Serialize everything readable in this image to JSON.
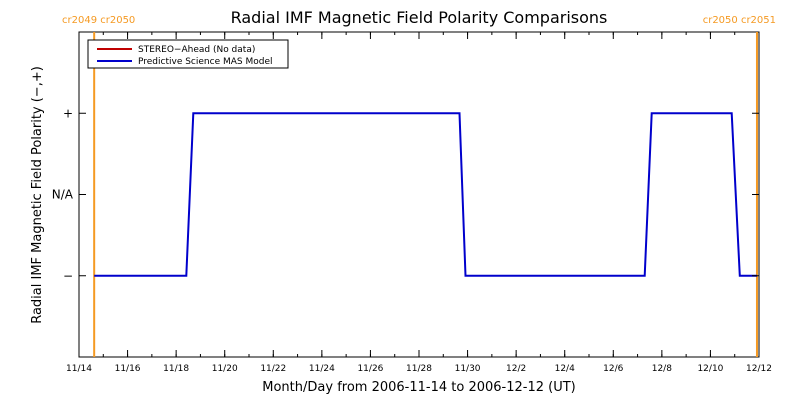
{
  "colors": {
    "frame": "#000000",
    "carrington": "#f59a23",
    "stereo": "#c00000",
    "model": "#0000cc"
  },
  "chart_data": {
    "type": "line",
    "title": "Radial IMF Magnetic Field Polarity Comparisons",
    "xlabel": "Month/Day from 2006-11-14 to 2006-12-12 (UT)",
    "ylabel": "Radial IMF Magnetic Field Polarity (−,+)",
    "xlim": [
      "2006-11-14",
      "2006-12-12"
    ],
    "ylim": [
      -2,
      2
    ],
    "x_ticks": [
      {
        "date": "2006-11-14",
        "label": "11/14"
      },
      {
        "date": "2006-11-16",
        "label": "11/16"
      },
      {
        "date": "2006-11-18",
        "label": "11/18"
      },
      {
        "date": "2006-11-20",
        "label": "11/20"
      },
      {
        "date": "2006-11-22",
        "label": "11/22"
      },
      {
        "date": "2006-11-24",
        "label": "11/24"
      },
      {
        "date": "2006-11-26",
        "label": "11/26"
      },
      {
        "date": "2006-11-28",
        "label": "11/28"
      },
      {
        "date": "2006-11-30",
        "label": "11/30"
      },
      {
        "date": "2006-12-02",
        "label": "12/2"
      },
      {
        "date": "2006-12-04",
        "label": "12/4"
      },
      {
        "date": "2006-12-06",
        "label": "12/6"
      },
      {
        "date": "2006-12-08",
        "label": "12/8"
      },
      {
        "date": "2006-12-10",
        "label": "12/10"
      },
      {
        "date": "2006-12-12",
        "label": "12/12"
      }
    ],
    "y_ticks": [
      {
        "value": 1,
        "label": "+"
      },
      {
        "value": 0,
        "label": "N/A"
      },
      {
        "value": -1,
        "label": "−"
      }
    ],
    "legend": {
      "position": "top-left",
      "entries": [
        {
          "label": "STEREO−Ahead (No data)",
          "color": "#c00000"
        },
        {
          "label": "Predictive Science MAS Model",
          "color": "#0000cc"
        }
      ]
    },
    "carrington_markers": [
      {
        "date": "2006-11-14 15:00",
        "label": "cr2049 cr2050",
        "side": "left"
      },
      {
        "date": "2006-12-11 22:00",
        "label": "cr2050 cr2051",
        "side": "right"
      }
    ],
    "series": [
      {
        "name": "Predictive Science MAS Model",
        "color": "#0000cc",
        "points": [
          [
            "2006-11-14 15:00",
            -1
          ],
          [
            "2006-11-18 10:00",
            -1
          ],
          [
            "2006-11-18 17:00",
            1
          ],
          [
            "2006-11-29 16:00",
            1
          ],
          [
            "2006-11-29 22:00",
            -1
          ],
          [
            "2006-12-07 07:00",
            -1
          ],
          [
            "2006-12-07 14:00",
            1
          ],
          [
            "2006-12-10 21:00",
            1
          ],
          [
            "2006-12-11 05:00",
            -1
          ],
          [
            "2006-12-11 22:00",
            -1
          ]
        ]
      },
      {
        "name": "STEREO−Ahead (No data)",
        "color": "#c00000",
        "points": []
      }
    ]
  }
}
